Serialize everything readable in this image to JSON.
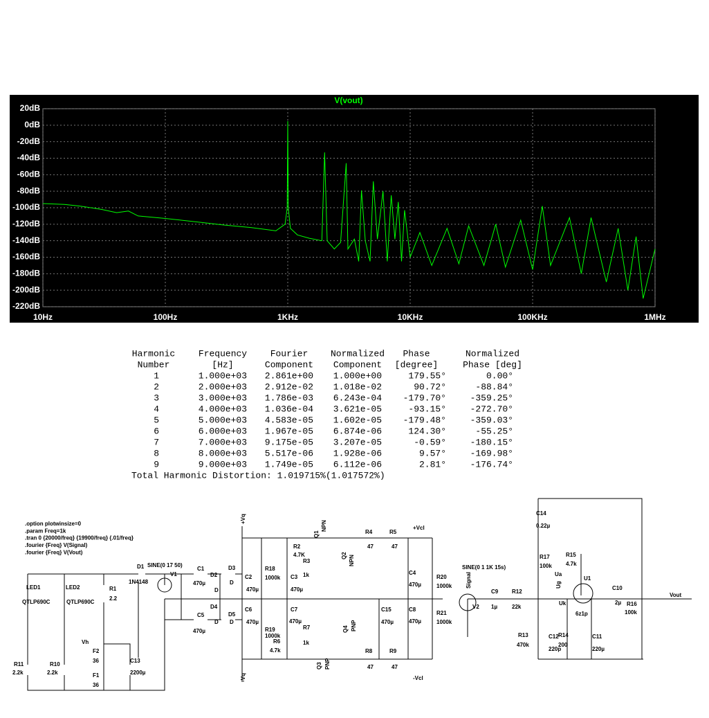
{
  "chart_data": {
    "type": "line",
    "title": "V(vout)",
    "log_x": true,
    "grid": true,
    "xlim": [
      10,
      1000000
    ],
    "xticks": [
      {
        "value": 10,
        "label": "10Hz"
      },
      {
        "value": 100,
        "label": "100Hz"
      },
      {
        "value": 1000,
        "label": "1KHz"
      },
      {
        "value": 10000,
        "label": "10KHz"
      },
      {
        "value": 100000,
        "label": "100KHz"
      },
      {
        "value": 1000000,
        "label": "1MHz"
      }
    ],
    "ylim": [
      -220,
      20
    ],
    "yticks": [
      {
        "value": 20,
        "label": "20dB"
      },
      {
        "value": 0,
        "label": "0dB"
      },
      {
        "value": -20,
        "label": "-20dB"
      },
      {
        "value": -40,
        "label": "-40dB"
      },
      {
        "value": -60,
        "label": "-60dB"
      },
      {
        "value": -80,
        "label": "-80dB"
      },
      {
        "value": -100,
        "label": "-100dB"
      },
      {
        "value": -120,
        "label": "-120dB"
      },
      {
        "value": -140,
        "label": "-140dB"
      },
      {
        "value": -160,
        "label": "-160dB"
      },
      {
        "value": -180,
        "label": "-180dB"
      },
      {
        "value": -200,
        "label": "-200dB"
      },
      {
        "value": -220,
        "label": "-220dB"
      }
    ],
    "x": [
      10,
      15,
      20,
      30,
      40,
      50,
      60,
      100,
      200,
      300,
      500,
      800,
      950,
      990,
      1000,
      1010,
      1050,
      1200,
      1500,
      1900,
      2000,
      2100,
      2400,
      2700,
      3000,
      3100,
      3500,
      3800,
      4000,
      4300,
      4700,
      5000,
      5400,
      6000,
      6500,
      7000,
      7500,
      8000,
      8500,
      9000,
      10000,
      12000,
      15000,
      20000,
      25000,
      30000,
      40000,
      50000,
      60000,
      80000,
      100000,
      120000,
      140000,
      200000,
      250000,
      300000,
      400000,
      500000,
      600000,
      700000,
      800000,
      1000000
    ],
    "series": [
      {
        "name": "V(vout)",
        "color": "#00ff00",
        "values": [
          -95,
          -96,
          -98,
          -102,
          -106,
          -104,
          -110,
          -113,
          -118,
          -121,
          -124,
          -128,
          -120,
          -100,
          5,
          -100,
          -125,
          -133,
          -137,
          -140,
          -33,
          -140,
          -150,
          -142,
          -46,
          -150,
          -138,
          -165,
          -79,
          -140,
          -165,
          -68,
          -138,
          -80,
          -165,
          -85,
          -138,
          -93,
          -165,
          -103,
          -160,
          -130,
          -170,
          -125,
          -168,
          -122,
          -170,
          -120,
          -172,
          -115,
          -175,
          -98,
          -170,
          -112,
          -180,
          -112,
          -190,
          -125,
          -200,
          -135,
          -210,
          -150
        ]
      }
    ]
  },
  "table": {
    "header": [
      [
        "Harmonic",
        "Frequency",
        "Fourier",
        "Normalized",
        "Phase",
        "Normalized"
      ],
      [
        "Number",
        "[Hz]",
        "Component",
        "Component",
        "[degree]",
        "Phase [deg]"
      ]
    ],
    "rows": [
      [
        "1",
        "1.000e+03",
        "2.861e+00",
        "1.000e+00",
        "179.55°",
        "0.00°"
      ],
      [
        "2",
        "2.000e+03",
        "2.912e-02",
        "1.018e-02",
        "90.72°",
        "-88.84°"
      ],
      [
        "3",
        "3.000e+03",
        "1.786e-03",
        "6.243e-04",
        "-179.70°",
        "-359.25°"
      ],
      [
        "4",
        "4.000e+03",
        "1.036e-04",
        "3.621e-05",
        "-93.15°",
        "-272.70°"
      ],
      [
        "5",
        "5.000e+03",
        "4.583e-05",
        "1.602e-05",
        "-179.48°",
        "-359.03°"
      ],
      [
        "6",
        "6.000e+03",
        "1.967e-05",
        "6.874e-06",
        "124.30°",
        "-55.25°"
      ],
      [
        "7",
        "7.000e+03",
        "9.175e-05",
        "3.207e-05",
        "-0.59°",
        "-180.15°"
      ],
      [
        "8",
        "8.000e+03",
        "5.517e-06",
        "1.928e-06",
        "9.57°",
        "-169.98°"
      ],
      [
        "9",
        "9.000e+03",
        "1.749e-05",
        "6.112e-06",
        "2.81°",
        "-176.74°"
      ]
    ],
    "total": "Total Harmonic Distortion: 1.019715%(1.017572%)"
  },
  "schematic": {
    "directives": [
      ".option plotwinsize=0",
      ".param Freq=1k",
      ".tran 0 {20000/freq} {19900/freq} {.01/freq}",
      ".fourier {Freq} V(Signal)",
      ".fourier {Freq} V(Vout)"
    ],
    "labels": [
      "LED1",
      "QTLP690C",
      "LED2",
      "QTLP690C",
      "R1",
      "2.2",
      "D1",
      "1N4148",
      "SINE(0 17 50)",
      "V1",
      "C1",
      "470µ",
      "D2",
      "D",
      "D3",
      "D",
      "C2",
      "470µ",
      "C5",
      "470µ",
      "D4",
      "D",
      "D5",
      "D",
      "C6",
      "470µ",
      "Vh",
      "F2",
      "36",
      "F1",
      "36",
      "C13",
      "2200µ",
      "R11",
      "2.2k",
      "R10",
      "2.2k",
      "+Vq",
      "-Vq",
      "R18",
      "1000k",
      "C3",
      "470µ",
      "R2",
      "4.7K",
      "R3",
      "1k",
      "Q1",
      "NPN",
      "Q2",
      "NPN",
      "R4",
      "47",
      "R5",
      "47",
      "+Vcl",
      "C4",
      "470µ",
      "R20",
      "1000k",
      "C8",
      "470µ",
      "R21",
      "1000k",
      "C7",
      "470µ",
      "R19",
      "1000k",
      "R6",
      "4.7k",
      "R7",
      "1k",
      "Q4",
      "PNP",
      "Q3",
      "PNP",
      "C15",
      "470µ",
      "R8",
      "47",
      "R9",
      "47",
      "-Vcl",
      "SINE(0 1 1K 15s)",
      "Signal",
      "V2",
      "C9",
      "1µ",
      "R12",
      "22k",
      "C14",
      "0.22µ",
      "R17",
      "100k",
      "R15",
      "4.7k",
      "Ua",
      "U1",
      "Ug",
      "Uk",
      "6z1p",
      "C10",
      "2µ",
      "Vout",
      "R16",
      "100k",
      "R13",
      "470k",
      "C12",
      "220p",
      "R14",
      "200",
      "C11",
      "220µ"
    ]
  }
}
